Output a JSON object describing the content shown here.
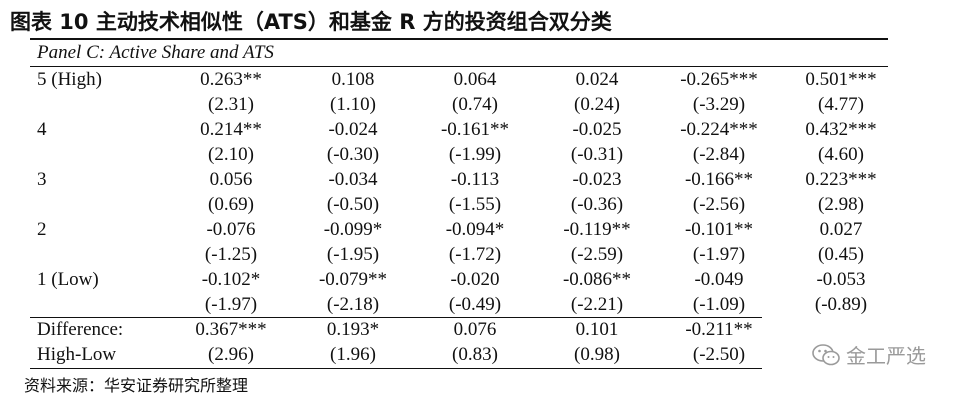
{
  "title": "图表 10 主动技术相似性（ATS）和基金 R 方的投资组合双分类",
  "panel_label": "Panel C: Active Share and ATS",
  "rows": [
    {
      "label": "5 (High)",
      "values": [
        "0.263**",
        "0.108",
        "0.064",
        "0.024",
        "-0.265***",
        "0.501***"
      ],
      "tstats": [
        "(2.31)",
        "(1.10)",
        "(0.74)",
        "(0.24)",
        "(-3.29)",
        "(4.77)"
      ]
    },
    {
      "label": "4",
      "values": [
        "0.214**",
        "-0.024",
        "-0.161**",
        "-0.025",
        "-0.224***",
        "0.432***"
      ],
      "tstats": [
        "(2.10)",
        "(-0.30)",
        "(-1.99)",
        "(-0.31)",
        "(-2.84)",
        "(4.60)"
      ]
    },
    {
      "label": "3",
      "values": [
        "0.056",
        "-0.034",
        "-0.113",
        "-0.023",
        "-0.166**",
        "0.223***"
      ],
      "tstats": [
        "(0.69)",
        "(-0.50)",
        "(-1.55)",
        "(-0.36)",
        "(-2.56)",
        "(2.98)"
      ]
    },
    {
      "label": "2",
      "values": [
        "-0.076",
        "-0.099*",
        "-0.094*",
        "-0.119**",
        "-0.101**",
        "0.027"
      ],
      "tstats": [
        "(-1.25)",
        "(-1.95)",
        "(-1.72)",
        "(-2.59)",
        "(-1.97)",
        "(0.45)"
      ]
    },
    {
      "label": "1 (Low)",
      "values": [
        "-0.102*",
        "-0.079**",
        "-0.020",
        "-0.086**",
        "-0.049",
        "-0.053"
      ],
      "tstats": [
        "(-1.97)",
        "(-2.18)",
        "(-0.49)",
        "(-2.21)",
        "(-1.09)",
        "(-0.89)"
      ]
    }
  ],
  "difference": {
    "label": "Difference:",
    "label2": "High-Low",
    "values": [
      "0.367***",
      "0.193*",
      "0.076",
      "0.101",
      "-0.211**"
    ],
    "tstats": [
      "(2.96)",
      "(1.96)",
      "(0.83)",
      "(0.98)",
      "(-2.50)"
    ]
  },
  "source": "资料来源：华安证券研究所整理",
  "watermark": {
    "text": "金工严选",
    "icon": "wechat-icon"
  }
}
